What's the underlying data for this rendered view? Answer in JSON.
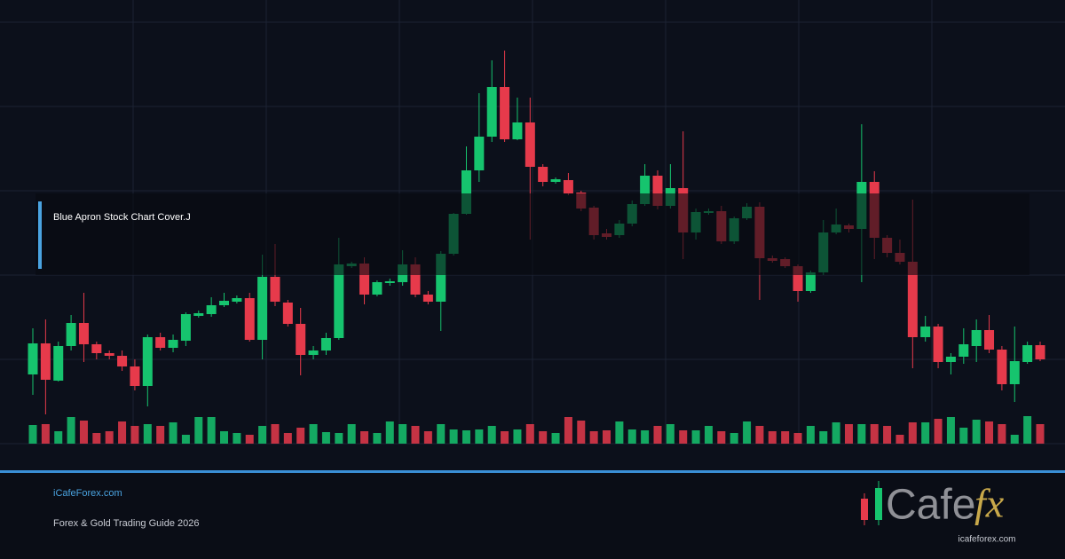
{
  "chart_data": {
    "type": "candlestick",
    "open": [
      78,
      113,
      71,
      110,
      136,
      112,
      102,
      99,
      87,
      65,
      120,
      108,
      116,
      144,
      146,
      156,
      160,
      164,
      117,
      188,
      159,
      135,
      100,
      105,
      119,
      200,
      203,
      168,
      181,
      182,
      202,
      168,
      160,
      214,
      259,
      308,
      346,
      402,
      343,
      362,
      312,
      295,
      297,
      283,
      266,
      237,
      235,
      248,
      270,
      302,
      268,
      288,
      238,
      260,
      262,
      228,
      254,
      267,
      209,
      208,
      200,
      172,
      193,
      238,
      246,
      242,
      295,
      232,
      215,
      205,
      120,
      132,
      92,
      98,
      110,
      128,
      106,
      67,
      92,
      111
    ],
    "high": [
      130,
      140,
      115,
      145,
      170,
      115,
      105,
      105,
      95,
      123,
      125,
      123,
      148,
      150,
      165,
      170,
      167,
      170,
      213,
      225,
      162,
      153,
      110,
      125,
      232,
      205,
      210,
      184,
      186,
      218,
      210,
      172,
      217,
      260,
      335,
      395,
      432,
      443,
      390,
      390,
      315,
      300,
      305,
      285,
      268,
      242,
      252,
      274,
      315,
      308,
      315,
      352,
      265,
      265,
      268,
      256,
      271,
      272,
      212,
      210,
      202,
      195,
      252,
      265,
      248,
      360,
      307,
      235,
      230,
      275,
      144,
      135,
      102,
      130,
      140,
      145,
      110,
      132,
      115,
      115
    ],
    "low": [
      55,
      33,
      70,
      105,
      92,
      95,
      95,
      82,
      60,
      42,
      105,
      103,
      110,
      142,
      143,
      154,
      158,
      115,
      95,
      155,
      132,
      77,
      95,
      100,
      117,
      198,
      157,
      166,
      178,
      178,
      165,
      157,
      127,
      212,
      258,
      295,
      340,
      340,
      342,
      230,
      290,
      293,
      280,
      262,
      230,
      230,
      232,
      245,
      268,
      264,
      265,
      208,
      230,
      258,
      225,
      225,
      252,
      162,
      204,
      198,
      160,
      170,
      190,
      236,
      238,
      182,
      208,
      210,
      202,
      85,
      115,
      85,
      78,
      90,
      92,
      102,
      60,
      47,
      90,
      93
    ],
    "close": [
      113,
      72,
      110,
      136,
      112,
      102,
      99,
      87,
      65,
      120,
      108,
      117,
      146,
      147,
      156,
      161,
      164,
      117,
      188,
      160,
      135,
      100,
      105,
      119,
      202,
      203,
      168,
      182,
      183,
      202,
      168,
      160,
      214,
      259,
      308,
      346,
      402,
      343,
      362,
      312,
      295,
      298,
      282,
      265,
      235,
      233,
      248,
      270,
      302,
      268,
      288,
      238,
      261,
      262,
      228,
      254,
      267,
      209,
      206,
      200,
      172,
      193,
      238,
      247,
      242,
      295,
      232,
      215,
      205,
      120,
      132,
      92,
      98,
      112,
      128,
      106,
      67,
      93,
      111,
      95
    ],
    "volume": [
      21,
      22,
      14,
      30,
      26,
      12,
      14,
      25,
      20,
      22,
      20,
      24,
      10,
      30,
      30,
      14,
      12,
      10,
      20,
      22,
      12,
      18,
      22,
      13,
      12,
      22,
      14,
      12,
      25,
      22,
      20,
      14,
      22,
      16,
      15,
      16,
      20,
      14,
      16,
      22,
      14,
      12,
      30,
      26,
      14,
      15,
      25,
      16,
      15,
      20,
      22,
      15,
      15,
      20,
      14,
      12,
      25,
      20,
      14,
      14,
      12,
      20,
      14,
      24,
      22,
      22,
      22,
      20,
      10,
      24,
      24,
      28,
      30,
      18,
      27,
      25,
      22,
      10,
      31,
      22
    ],
    "ylim": [
      0,
      475
    ],
    "volume_ylim": [
      0,
      95
    ],
    "up_color": "#16c46e",
    "down_color": "#e63a4b",
    "grid": true
  },
  "overlay_title": "Blue Apron Stock Chart Cover.J",
  "footer": {
    "site": "iCafeForex.com",
    "tagline": "Forex & Gold Trading Guide 2026"
  },
  "logo": {
    "word": "Cafe",
    "accent": "fx",
    "url": "icafeforex.com"
  }
}
